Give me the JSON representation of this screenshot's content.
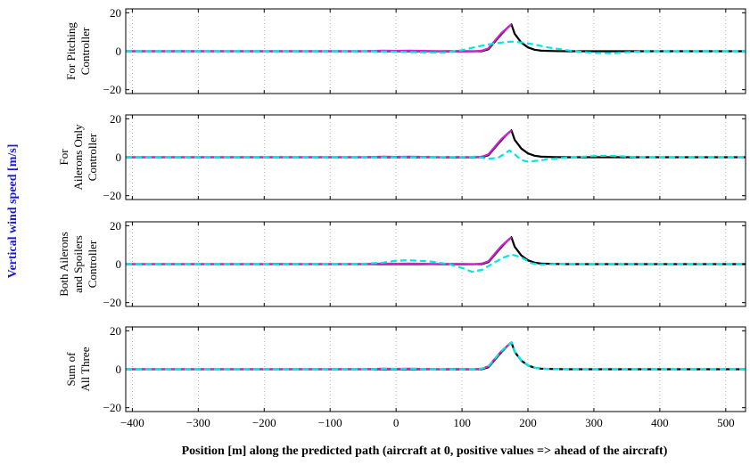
{
  "figure": {
    "super_ylabel": "Vertical wind speed [m/s]",
    "xlabel": "Position [m] along the predicted path (aircraft at 0, positive values => ahead of the aircraft)",
    "xticks": [
      "−400",
      "−300",
      "−200",
      "−100",
      "0",
      "100",
      "200",
      "300",
      "400",
      "500"
    ],
    "yticks": [
      "20",
      "0",
      "−20"
    ],
    "colors": {
      "magenta": "#d020d0",
      "black": "#000000",
      "cyan": "#00e5e5"
    }
  },
  "chart_data": [
    {
      "type": "line",
      "ylabel_lines": [
        "For Pitching",
        "Controller"
      ],
      "xlim": [
        -410,
        530
      ],
      "ylim": [
        -22,
        22
      ],
      "grid": true,
      "xtick_values": [
        -400,
        -300,
        -200,
        -100,
        0,
        100,
        200,
        300,
        400,
        500
      ],
      "ytick_values": [
        20,
        0,
        -20
      ],
      "series": [
        {
          "color": "#000000",
          "style": "solid",
          "x": [
            -410,
            100,
            130,
            140,
            150,
            160,
            170,
            175,
            180,
            190,
            200,
            210,
            220,
            240,
            260,
            530
          ],
          "y": [
            0,
            0,
            0,
            1,
            5,
            9,
            12.5,
            14,
            9,
            4.5,
            2,
            0.8,
            0.3,
            0.1,
            0,
            0
          ]
        },
        {
          "color": "#d020d0",
          "style": "solid",
          "x": [
            -410,
            -50,
            -20,
            0,
            20,
            40,
            60,
            80,
            100,
            120,
            130,
            140,
            150,
            160,
            170,
            175
          ],
          "y": [
            0,
            0,
            0.3,
            0.2,
            0.3,
            0.2,
            0,
            -0.2,
            -0.2,
            0,
            0.3,
            1.5,
            5.5,
            9.5,
            12.5,
            14
          ]
        },
        {
          "color": "#00e5e5",
          "style": "dashed",
          "x": [
            -410,
            -40,
            0,
            40,
            70,
            100,
            120,
            140,
            160,
            175,
            190,
            210,
            230,
            250,
            270,
            300,
            330,
            350,
            380,
            530
          ],
          "y": [
            0,
            0,
            -0.3,
            -0.6,
            -0.8,
            0.5,
            2.2,
            3.5,
            4.5,
            5,
            4.6,
            3.5,
            2,
            1,
            0,
            -0.9,
            -1,
            -0.5,
            0,
            0
          ]
        }
      ]
    },
    {
      "type": "line",
      "ylabel_lines": [
        "For",
        "Ailerons Only",
        "Controller"
      ],
      "xlim": [
        -410,
        530
      ],
      "ylim": [
        -22,
        22
      ],
      "grid": true,
      "xtick_values": [
        -400,
        -300,
        -200,
        -100,
        0,
        100,
        200,
        300,
        400,
        500
      ],
      "ytick_values": [
        20,
        0,
        -20
      ],
      "series": [
        {
          "color": "#000000",
          "style": "solid",
          "x": [
            -410,
            100,
            130,
            140,
            150,
            160,
            170,
            175,
            180,
            190,
            200,
            210,
            220,
            240,
            260,
            530
          ],
          "y": [
            0,
            0,
            0,
            1,
            5,
            9,
            12.5,
            14,
            9,
            4.5,
            2,
            0.8,
            0.3,
            0.1,
            0,
            0
          ]
        },
        {
          "color": "#d020d0",
          "style": "solid",
          "x": [
            -410,
            -50,
            -20,
            0,
            20,
            40,
            60,
            80,
            100,
            120,
            130,
            140,
            150,
            160,
            170,
            175
          ],
          "y": [
            0,
            0,
            0.3,
            0.2,
            0.3,
            0.2,
            0,
            -0.2,
            -0.2,
            0,
            0.3,
            1.5,
            5.5,
            9.5,
            12.5,
            14
          ]
        },
        {
          "color": "#00e5e5",
          "style": "dashed",
          "x": [
            -410,
            100,
            120,
            140,
            155,
            165,
            172,
            180,
            190,
            200,
            215,
            230,
            250,
            270,
            300,
            320,
            340,
            370,
            530
          ],
          "y": [
            0,
            0,
            0.3,
            -0.8,
            -0.3,
            2,
            3.5,
            1.5,
            -1.5,
            -2.3,
            -1.8,
            -1,
            -0.4,
            0,
            0.6,
            0.8,
            0.5,
            0,
            0
          ]
        }
      ]
    },
    {
      "type": "line",
      "ylabel_lines": [
        "Both Ailerons",
        "and Spoilers",
        "Controller"
      ],
      "xlim": [
        -410,
        530
      ],
      "ylim": [
        -22,
        22
      ],
      "grid": true,
      "xtick_values": [
        -400,
        -300,
        -200,
        -100,
        0,
        100,
        200,
        300,
        400,
        500
      ],
      "ytick_values": [
        20,
        0,
        -20
      ],
      "series": [
        {
          "color": "#000000",
          "style": "solid",
          "x": [
            -410,
            100,
            130,
            140,
            150,
            160,
            170,
            175,
            180,
            190,
            200,
            210,
            220,
            240,
            260,
            530
          ],
          "y": [
            0,
            0,
            0,
            1,
            5,
            9,
            12.5,
            14,
            9,
            4.5,
            2,
            0.8,
            0.3,
            0.1,
            0,
            0
          ]
        },
        {
          "color": "#d020d0",
          "style": "solid",
          "x": [
            -410,
            -50,
            -20,
            0,
            20,
            40,
            60,
            80,
            100,
            120,
            130,
            140,
            150,
            160,
            170,
            175
          ],
          "y": [
            0,
            0,
            0.3,
            0.2,
            0.3,
            0.2,
            0,
            -0.2,
            -0.2,
            0,
            0.3,
            1.5,
            5.5,
            9.5,
            12.5,
            14
          ]
        },
        {
          "color": "#00e5e5",
          "style": "dashed",
          "x": [
            -410,
            -200,
            -180,
            -160,
            -60,
            -20,
            0,
            20,
            50,
            80,
            100,
            115,
            130,
            145,
            160,
            175,
            190,
            205,
            220,
            240,
            530
          ],
          "y": [
            0,
            0,
            -0.3,
            0,
            0,
            0.8,
            1.8,
            2,
            1.5,
            0,
            -2,
            -4,
            -3,
            0,
            3,
            5,
            3.5,
            0.5,
            -0.3,
            0,
            0
          ]
        }
      ]
    },
    {
      "type": "line",
      "ylabel_lines": [
        "Sum of",
        "All Three"
      ],
      "xlim": [
        -410,
        530
      ],
      "ylim": [
        -22,
        22
      ],
      "grid": true,
      "xtick_values": [
        -400,
        -300,
        -200,
        -100,
        0,
        100,
        200,
        300,
        400,
        500
      ],
      "ytick_values": [
        20,
        0,
        -20
      ],
      "series": [
        {
          "color": "#000000",
          "style": "solid",
          "x": [
            -410,
            100,
            130,
            140,
            150,
            160,
            170,
            175,
            180,
            190,
            200,
            210,
            220,
            240,
            260,
            530
          ],
          "y": [
            0,
            0,
            0,
            1,
            5,
            9,
            12.5,
            14,
            9,
            4.5,
            2,
            0.8,
            0.3,
            0.1,
            0,
            0
          ]
        },
        {
          "color": "#d020d0",
          "style": "solid",
          "x": [
            -410,
            -50,
            -20,
            0,
            20,
            40,
            60,
            80,
            100,
            120,
            130,
            140,
            150,
            160,
            170,
            175
          ],
          "y": [
            0,
            0,
            0.3,
            0.2,
            0.3,
            0.2,
            0,
            -0.2,
            -0.2,
            0,
            0.3,
            1.5,
            5.5,
            9.5,
            12.5,
            14
          ]
        },
        {
          "color": "#00e5e5",
          "style": "dashed",
          "x": [
            -410,
            -50,
            -20,
            0,
            20,
            40,
            60,
            80,
            100,
            120,
            130,
            140,
            150,
            160,
            170,
            175,
            180,
            190,
            200,
            210,
            220,
            240,
            260,
            530
          ],
          "y": [
            0,
            0,
            0.3,
            0.2,
            0.3,
            0.2,
            0,
            -0.2,
            -0.2,
            0,
            0.3,
            1.5,
            5.5,
            9.5,
            12.5,
            14,
            9,
            4.5,
            2,
            0.8,
            0.3,
            0.1,
            0,
            0
          ]
        }
      ]
    }
  ]
}
